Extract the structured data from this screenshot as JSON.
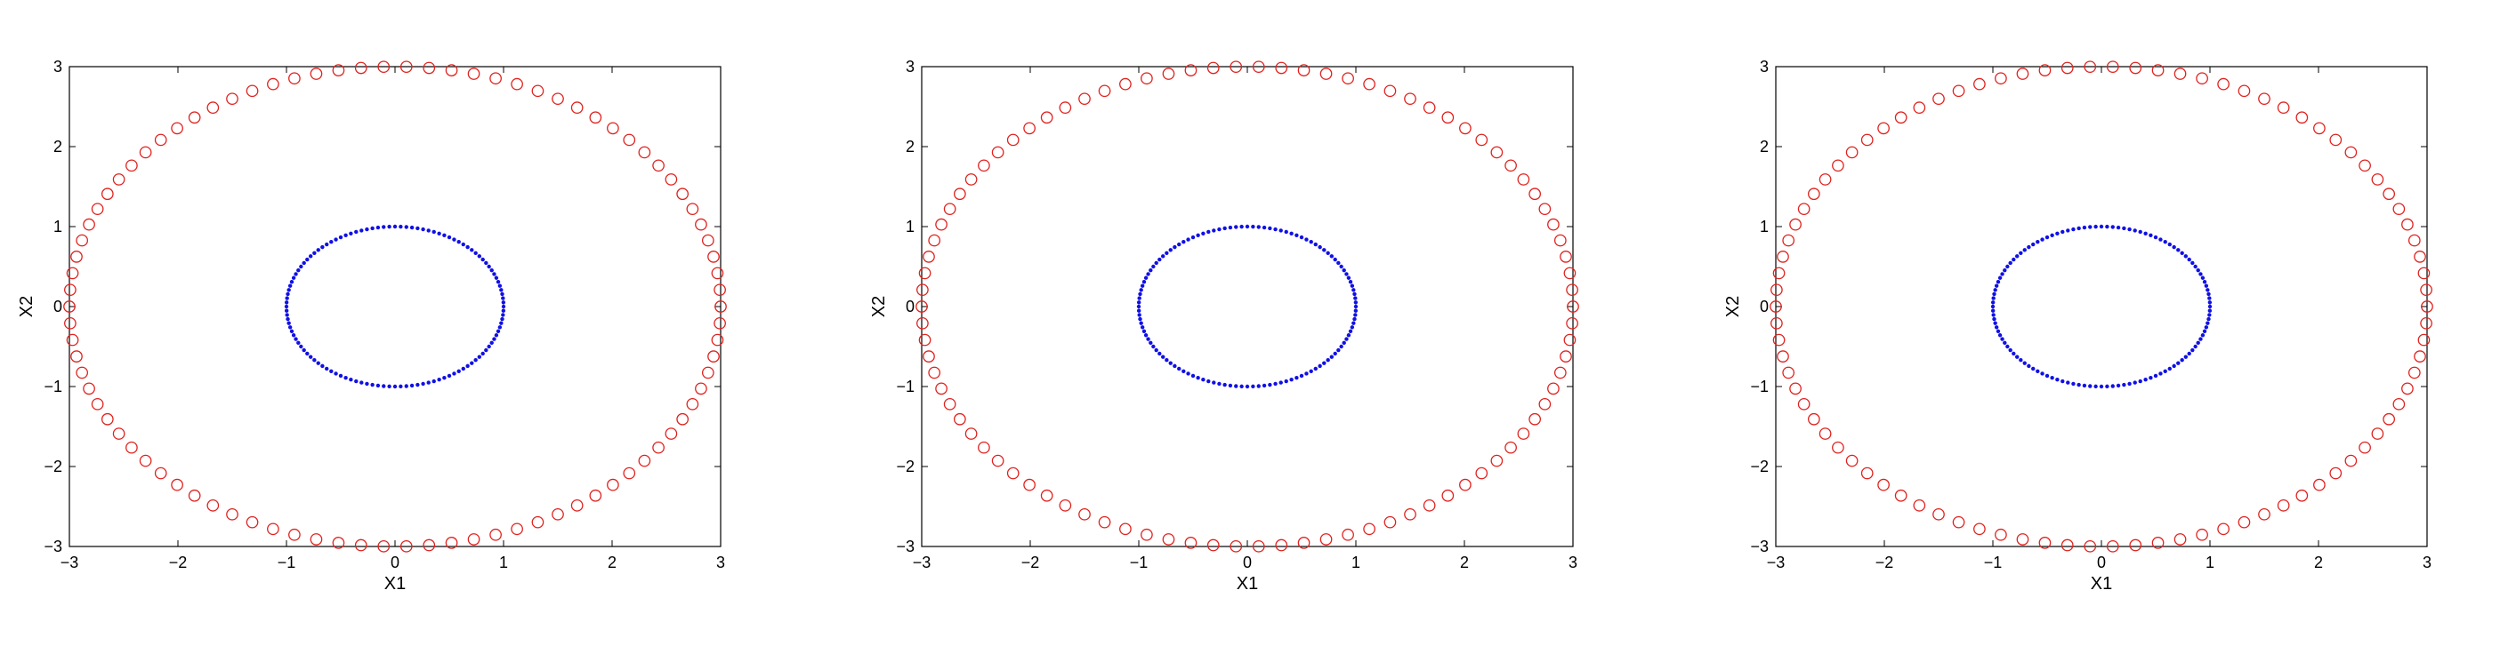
{
  "chart_data": [
    {
      "type": "scatter",
      "xlabel": "X1",
      "ylabel": "X2",
      "xlim": [
        -3,
        3
      ],
      "ylim": [
        -3,
        3
      ],
      "xticks": [
        -3,
        -2,
        -1,
        0,
        1,
        2,
        3
      ],
      "yticks": [
        -3,
        -2,
        -1,
        0,
        1,
        2,
        3
      ],
      "tick_labels_x": [
        "−3",
        "−2",
        "−1",
        "0",
        "1",
        "2",
        "3"
      ],
      "tick_labels_y": [
        "−3",
        "−2",
        "−1",
        "0",
        "1",
        "2",
        "3"
      ],
      "grid": false,
      "series": [
        {
          "shape": "circle",
          "radius": 3,
          "points": 90,
          "marker": "open-circle",
          "color": "#e0211d"
        },
        {
          "shape": "circle",
          "radius": 1,
          "points": 120,
          "marker": "dot",
          "color": "#1010e6"
        }
      ]
    },
    {
      "type": "scatter",
      "xlabel": "X1",
      "ylabel": "X2",
      "xlim": [
        -3,
        3
      ],
      "ylim": [
        -3,
        3
      ],
      "xticks": [
        -3,
        -2,
        -1,
        0,
        1,
        2,
        3
      ],
      "yticks": [
        -3,
        -2,
        -1,
        0,
        1,
        2,
        3
      ],
      "tick_labels_x": [
        "−3",
        "−2",
        "−1",
        "0",
        "1",
        "2",
        "3"
      ],
      "tick_labels_y": [
        "−3",
        "−2",
        "−1",
        "0",
        "1",
        "2",
        "3"
      ],
      "grid": false,
      "series": [
        {
          "shape": "circle",
          "radius": 3,
          "points": 90,
          "marker": "open-circle",
          "color": "#e0211d"
        },
        {
          "shape": "circle",
          "radius": 1,
          "points": 120,
          "marker": "dot",
          "color": "#1010e6"
        }
      ]
    },
    {
      "type": "scatter",
      "xlabel": "X1",
      "ylabel": "X2",
      "xlim": [
        -3,
        3
      ],
      "ylim": [
        -3,
        3
      ],
      "xticks": [
        -3,
        -2,
        -1,
        0,
        1,
        2,
        3
      ],
      "yticks": [
        -3,
        -2,
        -1,
        0,
        1,
        2,
        3
      ],
      "tick_labels_x": [
        "−3",
        "−2",
        "−1",
        "0",
        "1",
        "2",
        "3"
      ],
      "tick_labels_y": [
        "−3",
        "−2",
        "−1",
        "0",
        "1",
        "2",
        "3"
      ],
      "grid": false,
      "series": [
        {
          "shape": "circle",
          "radius": 3,
          "points": 90,
          "marker": "open-circle",
          "color": "#e0211d"
        },
        {
          "shape": "circle",
          "radius": 1,
          "points": 120,
          "marker": "dot",
          "color": "#1010e6"
        }
      ]
    }
  ]
}
